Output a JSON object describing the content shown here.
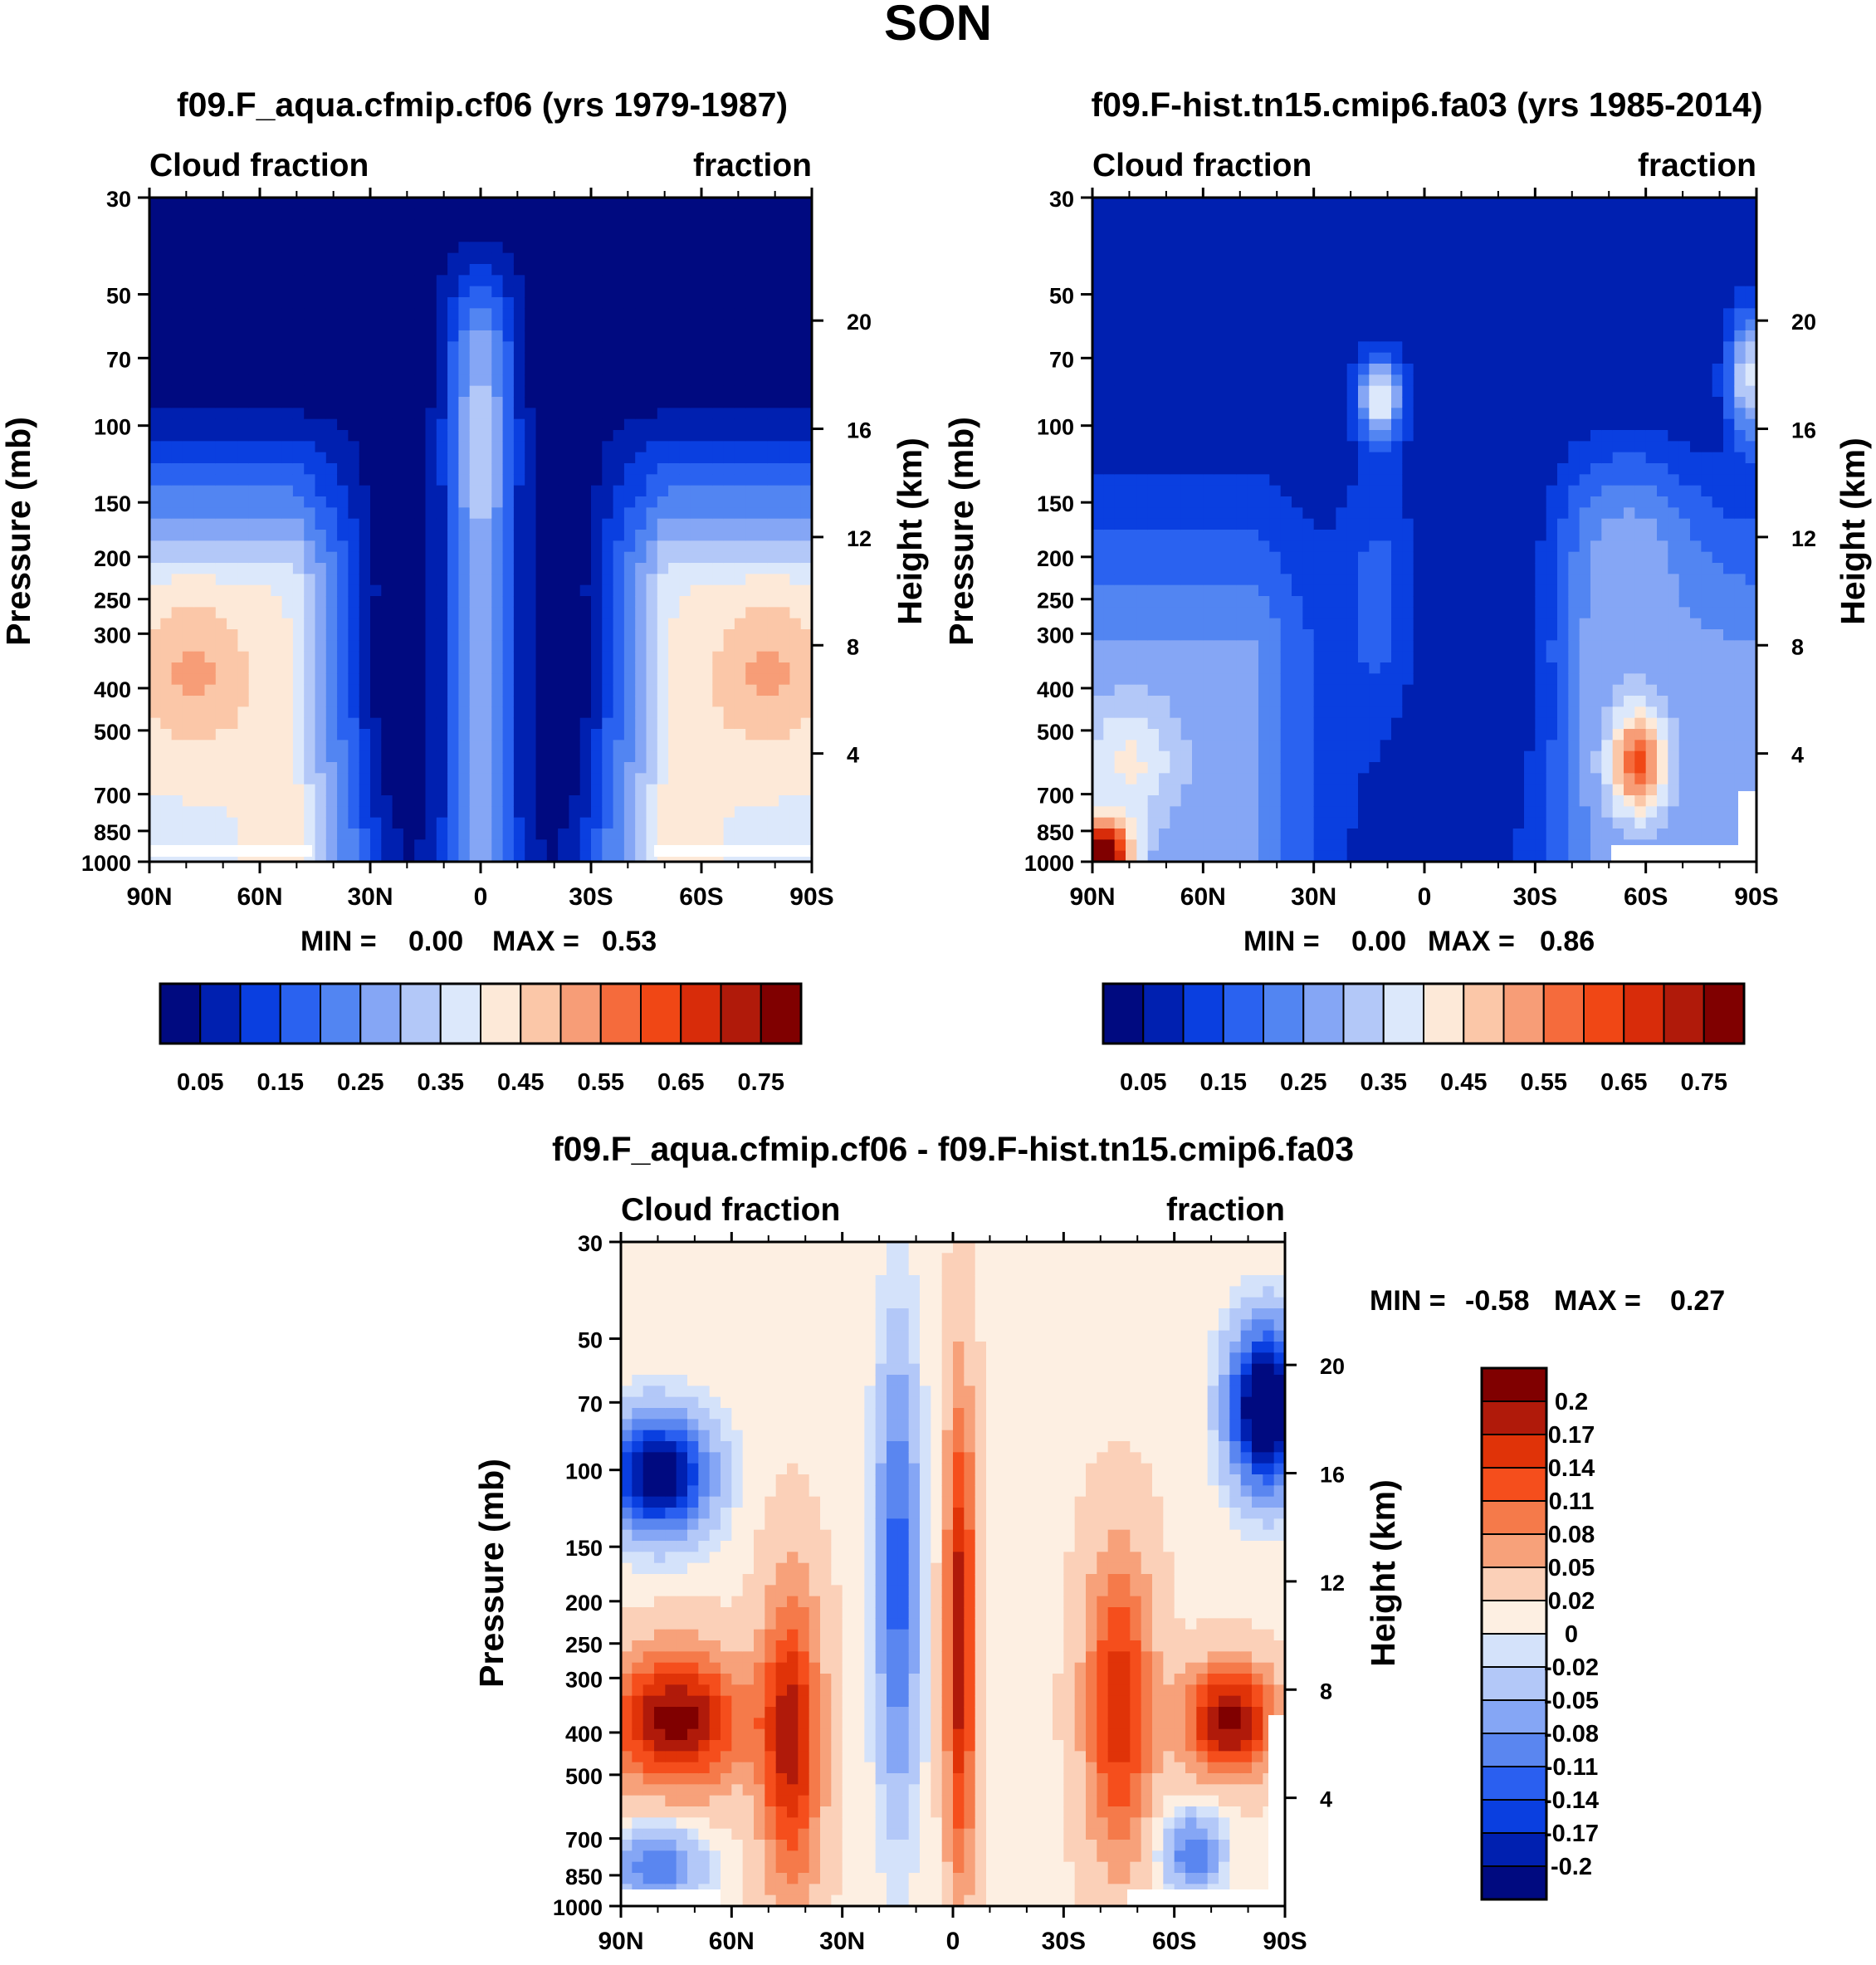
{
  "figure_title": "SON",
  "chart_data": [
    {
      "type": "heatmap",
      "panel": "left",
      "title": "f09.F_aqua.cfmip.cf06 (yrs 1979-1987)",
      "left_label": "Cloud fraction",
      "right_label": "fraction",
      "ylabel": "Pressure (mb)",
      "ylabel_right": "Height (km)",
      "x_ticks": [
        "90N",
        "60N",
        "30N",
        "0",
        "30S",
        "60S",
        "90S"
      ],
      "y_ticks": [
        "30",
        "50",
        "70",
        "100",
        "150",
        "200",
        "250",
        "300",
        "400",
        "500",
        "700",
        "850",
        "1000"
      ],
      "height_ticks": [
        "20",
        "16",
        "12",
        "8",
        "4"
      ],
      "ylim": [
        1000,
        30
      ],
      "xlim": [
        90,
        -90
      ],
      "min_label": "MIN =",
      "min_value": "0.00",
      "max_label": "MAX =",
      "max_value": "0.53",
      "colorbar_labels": [
        "0.05",
        "0.15",
        "0.25",
        "0.35",
        "0.45",
        "0.55",
        "0.65",
        "0.75"
      ],
      "colorbar_min": 0.0,
      "colorbar_max": 0.8,
      "colorbar_step": 0.05
    },
    {
      "type": "heatmap",
      "panel": "right",
      "title": "f09.F-hist.tn15.cmip6.fa03 (yrs 1985-2014)",
      "left_label": "Cloud fraction",
      "right_label": "fraction",
      "ylabel": "Pressure (mb)",
      "ylabel_right": "Height (km)",
      "x_ticks": [
        "90N",
        "60N",
        "30N",
        "0",
        "30S",
        "60S",
        "90S"
      ],
      "y_ticks": [
        "30",
        "50",
        "70",
        "100",
        "150",
        "200",
        "250",
        "300",
        "400",
        "500",
        "700",
        "850",
        "1000"
      ],
      "height_ticks": [
        "20",
        "16",
        "12",
        "8",
        "4"
      ],
      "ylim": [
        1000,
        30
      ],
      "xlim": [
        90,
        -90
      ],
      "min_label": "MIN =",
      "min_value": "0.00",
      "max_label": "MAX =",
      "max_value": "0.86",
      "colorbar_labels": [
        "0.05",
        "0.15",
        "0.25",
        "0.35",
        "0.45",
        "0.55",
        "0.65",
        "0.75"
      ],
      "colorbar_min": 0.0,
      "colorbar_max": 0.8,
      "colorbar_step": 0.05
    },
    {
      "type": "heatmap",
      "panel": "difference",
      "title": "f09.F_aqua.cfmip.cf06 - f09.F-hist.tn15.cmip6.fa03",
      "left_label": "Cloud fraction",
      "right_label": "fraction",
      "ylabel": "Pressure (mb)",
      "ylabel_right": "Height (km)",
      "x_ticks": [
        "90N",
        "60N",
        "30N",
        "0",
        "30S",
        "60S",
        "90S"
      ],
      "y_ticks": [
        "30",
        "50",
        "70",
        "100",
        "150",
        "200",
        "250",
        "300",
        "400",
        "500",
        "700",
        "850",
        "1000"
      ],
      "height_ticks": [
        "20",
        "16",
        "12",
        "8",
        "4"
      ],
      "ylim": [
        1000,
        30
      ],
      "xlim": [
        90,
        -90
      ],
      "min_label": "MIN =",
      "min_value": "-0.58",
      "max_label": "MAX =",
      "max_value": "0.27",
      "colorbar_labels": [
        "0.2",
        "0.17",
        "0.14",
        "0.11",
        "0.08",
        "0.05",
        "0.02",
        "0",
        "-0.02",
        "-0.05",
        "-0.08",
        "-0.11",
        "-0.14",
        "-0.17",
        "-0.2"
      ]
    }
  ],
  "colors": {
    "seq_palette": [
      "#000a80",
      "#0020b0",
      "#0a3fe0",
      "#2a62f0",
      "#5285f2",
      "#85a6f5",
      "#b3c8f8",
      "#dce8fb",
      "#fde9d8",
      "#fbc7a8",
      "#f79d77",
      "#f56b3c",
      "#f04715",
      "#d82c0a",
      "#b01a0a",
      "#800000"
    ],
    "diff_palette": [
      "#800000",
      "#b01a0a",
      "#e03308",
      "#f54e1c",
      "#f57a4a",
      "#f7a17a",
      "#fbd0b8",
      "#fdefe2",
      "#d4e2fa",
      "#b3c8f8",
      "#85a6f5",
      "#5a86f0",
      "#2a5ff0",
      "#0a3fe0",
      "#0020b0",
      "#000a80"
    ],
    "missing": "#ffffff"
  }
}
